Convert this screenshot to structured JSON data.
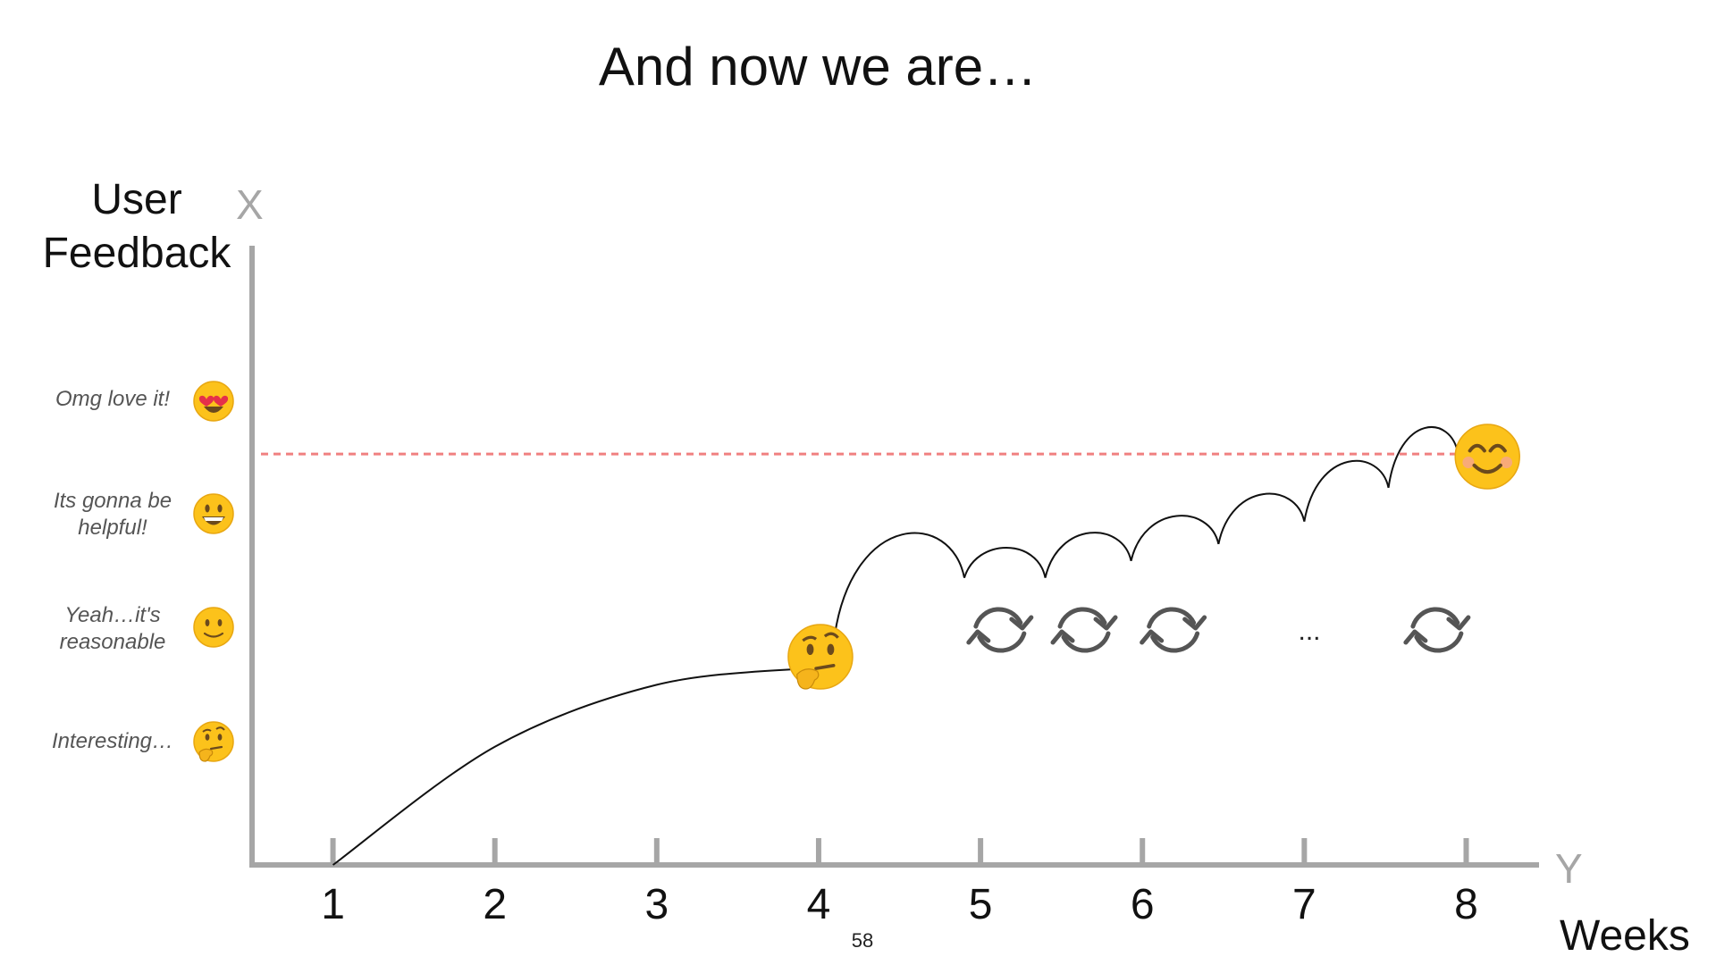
{
  "slide": {
    "title": "And now we are…",
    "page_number": "58",
    "ellipsis": "..."
  },
  "chart_data": {
    "type": "line",
    "ylabel": "User Feedback",
    "xlabel": "Weeks",
    "y_axis_letter": "X",
    "x_axis_letter": "Y",
    "x_ticks": [
      "1",
      "2",
      "3",
      "4",
      "5",
      "6",
      "7",
      "8"
    ],
    "xlim": [
      0.5,
      8.45
    ],
    "ylim": [
      0,
      5.5
    ],
    "levels": [
      {
        "value": 1,
        "label": "Interesting…",
        "icon": "thinking-face-icon"
      },
      {
        "value": 2,
        "label": "Yeah…it's reasonable",
        "icon": "slightly-smiling-face-icon"
      },
      {
        "value": 3,
        "label": "Its gonna be helpful!",
        "icon": "grinning-face-icon"
      },
      {
        "value": 4,
        "label": "Omg love it!",
        "icon": "heart-eyes-face-icon"
      }
    ],
    "target_line": {
      "y": 3.65,
      "color": "#f08080",
      "style": "dashed"
    },
    "first_curve": {
      "x": [
        1,
        2,
        3,
        3.95
      ],
      "y": [
        0,
        1.05,
        1.6,
        1.75
      ]
    },
    "iteration_hops": [
      {
        "x0": 4.1,
        "y0": 2.05,
        "x1": 4.9,
        "y1": 2.55
      },
      {
        "x0": 4.9,
        "y0": 2.55,
        "x1": 5.4,
        "y1": 2.55
      },
      {
        "x0": 5.4,
        "y0": 2.55,
        "x1": 5.93,
        "y1": 2.7
      },
      {
        "x0": 5.93,
        "y0": 2.7,
        "x1": 6.47,
        "y1": 2.85
      },
      {
        "x0": 6.47,
        "y0": 2.85,
        "x1": 7.0,
        "y1": 3.05
      },
      {
        "x0": 7.0,
        "y0": 3.05,
        "x1": 7.52,
        "y1": 3.35
      },
      {
        "x0": 7.52,
        "y0": 3.35,
        "x1": 7.95,
        "y1": 3.65
      }
    ],
    "markers": [
      {
        "x": 4.0,
        "y": 1.85,
        "icon": "thinking-face-icon"
      },
      {
        "x": 8.12,
        "y": 3.5,
        "icon": "smiling-face-icon"
      }
    ],
    "cycle_icons": [
      5.12,
      5.64,
      6.19,
      7.82
    ],
    "ellipsis_x": 7.0,
    "colors": {
      "axis": "#a6a6a6",
      "curve": "#111111",
      "cycle": "#555555",
      "emoji": "#fcc21b"
    }
  }
}
